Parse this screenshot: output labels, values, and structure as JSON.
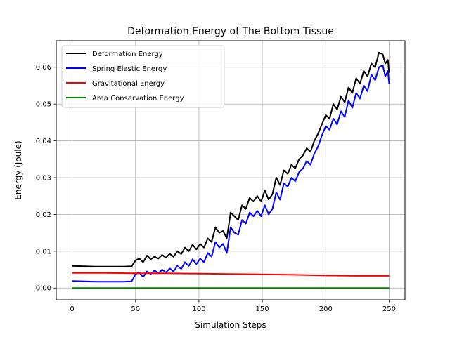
{
  "chart_data": {
    "type": "line",
    "title": "Deformation Energy of The Bottom Tissue",
    "xlabel": "Simulation Steps",
    "ylabel": "Energy (Joule)",
    "xlim": [
      -12.5,
      262.5
    ],
    "ylim": [
      -0.0032,
      0.0672
    ],
    "xticks": [
      0,
      50,
      100,
      150,
      200,
      250
    ],
    "yticks": [
      0.0,
      0.01,
      0.02,
      0.03,
      0.04,
      0.05,
      0.06
    ],
    "xtick_labels": [
      "0",
      "50",
      "100",
      "150",
      "200",
      "250"
    ],
    "ytick_labels": [
      "0.00",
      "0.01",
      "0.02",
      "0.03",
      "0.04",
      "0.05",
      "0.06"
    ],
    "grid": true,
    "legend_position": "top-left",
    "series": [
      {
        "name": "Deformation Energy",
        "color": "#000000",
        "x": [
          0,
          10,
          20,
          30,
          40,
          47,
          50,
          53,
          56,
          59,
          62,
          65,
          68,
          71,
          74,
          77,
          80,
          83,
          86,
          89,
          92,
          95,
          98,
          101,
          104,
          107,
          110,
          113,
          116,
          119,
          122,
          125,
          128,
          131,
          134,
          137,
          140,
          143,
          146,
          149,
          152,
          155,
          158,
          161,
          164,
          167,
          170,
          173,
          176,
          179,
          182,
          185,
          188,
          191,
          194,
          197,
          200,
          203,
          206,
          209,
          212,
          215,
          218,
          221,
          224,
          227,
          230,
          233,
          236,
          239,
          242,
          245,
          247,
          249,
          250
        ],
        "y": [
          0.006,
          0.0059,
          0.0058,
          0.0058,
          0.0058,
          0.0059,
          0.0075,
          0.008,
          0.007,
          0.0088,
          0.0078,
          0.0085,
          0.008,
          0.009,
          0.0082,
          0.0093,
          0.0085,
          0.01,
          0.0092,
          0.011,
          0.01,
          0.0118,
          0.0105,
          0.012,
          0.011,
          0.0135,
          0.0125,
          0.0165,
          0.015,
          0.0155,
          0.0135,
          0.0205,
          0.0195,
          0.0185,
          0.0225,
          0.0215,
          0.0245,
          0.0235,
          0.025,
          0.0235,
          0.0265,
          0.024,
          0.0255,
          0.03,
          0.028,
          0.032,
          0.031,
          0.0335,
          0.0325,
          0.035,
          0.036,
          0.038,
          0.037,
          0.04,
          0.042,
          0.0445,
          0.047,
          0.046,
          0.05,
          0.0485,
          0.052,
          0.0505,
          0.0545,
          0.053,
          0.057,
          0.0555,
          0.059,
          0.0575,
          0.061,
          0.06,
          0.064,
          0.0635,
          0.061,
          0.062,
          0.0585
        ]
      },
      {
        "name": "Spring Elastic Energy",
        "color": "#0000ff",
        "x": [
          0,
          10,
          20,
          30,
          40,
          47,
          50,
          53,
          56,
          59,
          62,
          65,
          68,
          71,
          74,
          77,
          80,
          83,
          86,
          89,
          92,
          95,
          98,
          101,
          104,
          107,
          110,
          113,
          116,
          119,
          122,
          125,
          128,
          131,
          134,
          137,
          140,
          143,
          146,
          149,
          152,
          155,
          158,
          161,
          164,
          167,
          170,
          173,
          176,
          179,
          182,
          185,
          188,
          191,
          194,
          197,
          200,
          203,
          206,
          209,
          212,
          215,
          218,
          221,
          224,
          227,
          230,
          233,
          236,
          239,
          242,
          245,
          247,
          249,
          250
        ],
        "y": [
          0.0019,
          0.0018,
          0.0017,
          0.0017,
          0.0017,
          0.0018,
          0.0038,
          0.0042,
          0.003,
          0.0045,
          0.0038,
          0.0048,
          0.004,
          0.005,
          0.0042,
          0.0053,
          0.0045,
          0.006,
          0.0052,
          0.007,
          0.006,
          0.0078,
          0.0065,
          0.008,
          0.007,
          0.0095,
          0.0085,
          0.0125,
          0.011,
          0.012,
          0.0095,
          0.0165,
          0.015,
          0.0145,
          0.0185,
          0.0175,
          0.0205,
          0.0195,
          0.021,
          0.0195,
          0.0225,
          0.02,
          0.0215,
          0.026,
          0.024,
          0.0285,
          0.0275,
          0.03,
          0.029,
          0.0315,
          0.0325,
          0.0345,
          0.0335,
          0.0365,
          0.0385,
          0.0415,
          0.044,
          0.043,
          0.046,
          0.0445,
          0.048,
          0.0465,
          0.051,
          0.049,
          0.053,
          0.0515,
          0.055,
          0.0535,
          0.058,
          0.0565,
          0.06,
          0.0605,
          0.0575,
          0.059,
          0.0555
        ]
      },
      {
        "name": "Gravitational Energy",
        "color": "#ff0000",
        "x": [
          0,
          25,
          50,
          75,
          100,
          125,
          150,
          175,
          200,
          225,
          250
        ],
        "y": [
          0.0041,
          0.0041,
          0.004,
          0.004,
          0.0039,
          0.0038,
          0.0037,
          0.0036,
          0.0034,
          0.0033,
          0.0033
        ]
      },
      {
        "name": "Area Conservation Energy",
        "color": "#008000",
        "x": [
          0,
          250
        ],
        "y": [
          0.0,
          0.0
        ]
      }
    ]
  }
}
